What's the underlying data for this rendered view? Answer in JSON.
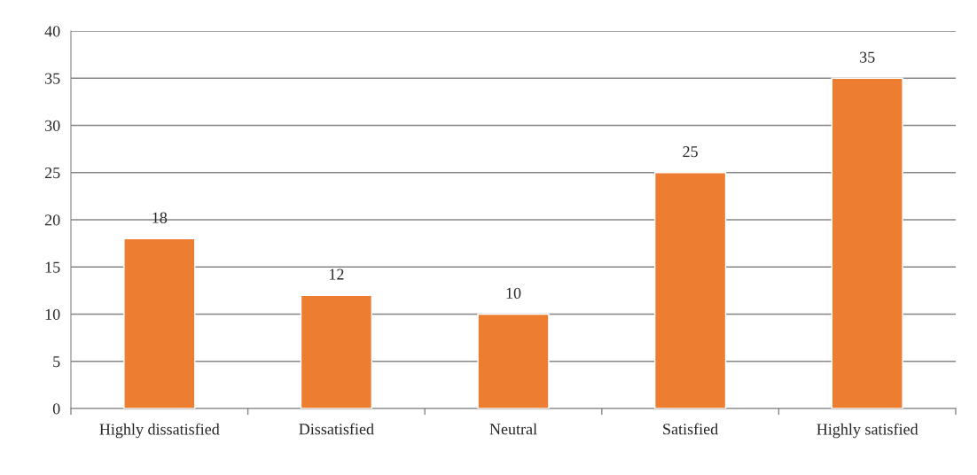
{
  "chart_data": {
    "type": "bar",
    "categories": [
      "Highly dissatisfied",
      "Dissatisfied",
      "Neutral",
      "Satisfied",
      "Highly satisfied"
    ],
    "values": [
      18,
      12,
      10,
      25,
      35
    ],
    "color": "#ed7d31",
    "ylim": [
      0,
      40
    ],
    "yticks": [
      0,
      5,
      10,
      15,
      20,
      25,
      30,
      35,
      40
    ],
    "grid": "y",
    "data_labels": true
  }
}
